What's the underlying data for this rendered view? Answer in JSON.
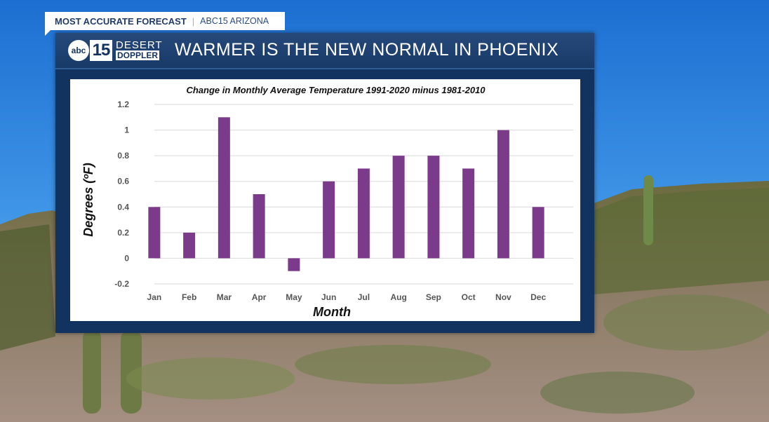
{
  "topbar": {
    "label": "MOST ACCURATE FORECAST",
    "separator": "|",
    "station": "ABC15 ARIZONA"
  },
  "logo": {
    "abc": "abc",
    "number": "15",
    "line1": "DESERT",
    "line2": "DOPPLER"
  },
  "headline": "WARMER IS THE NEW NORMAL IN PHOENIX",
  "colors": {
    "bar": "#7b3a8a",
    "panel": "#12325f",
    "sky_top": "#1c6fd1"
  },
  "chart_data": {
    "type": "bar",
    "title": "Change in Monthly Average Temperature 1991-2020 minus 1981-2010",
    "xlabel": "Month",
    "ylabel": "Degrees (ºF)",
    "categories": [
      "Jan",
      "Feb",
      "Mar",
      "Apr",
      "May",
      "Jun",
      "Jul",
      "Aug",
      "Sep",
      "Oct",
      "Nov",
      "Dec"
    ],
    "values": [
      0.4,
      0.2,
      1.1,
      0.5,
      -0.1,
      0.6,
      0.7,
      0.8,
      0.8,
      0.7,
      1.0,
      0.4
    ],
    "ylim": [
      -0.2,
      1.2
    ],
    "yticks": [
      "-0.2",
      "0",
      "0.2",
      "0.4",
      "0.6",
      "0.8",
      "1",
      "1.2"
    ],
    "ytick_values": [
      -0.2,
      0,
      0.2,
      0.4,
      0.6,
      0.8,
      1.0,
      1.2
    ],
    "grid": true,
    "legend": "none"
  }
}
